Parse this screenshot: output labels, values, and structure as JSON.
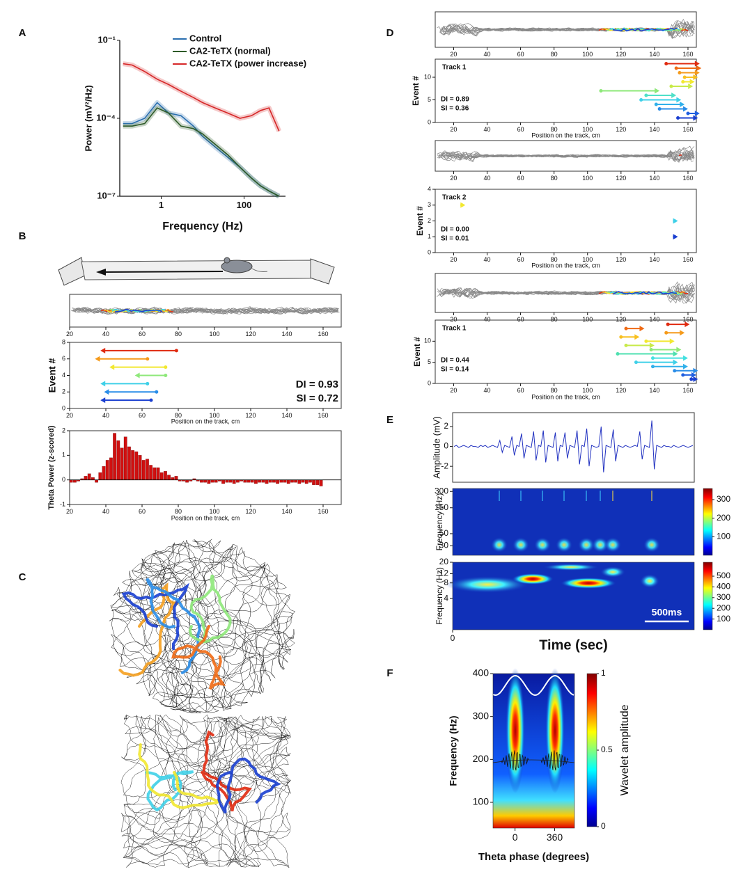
{
  "panel_labels": [
    "A",
    "B",
    "C",
    "D",
    "E",
    "F"
  ],
  "chart_data": [
    {
      "type": "line",
      "xlabel": "Frequency (Hz)",
      "ylabel": "Power (mV²/Hz)",
      "xscale": "log",
      "yscale": "log",
      "xlim": [
        0.1,
        1000
      ],
      "ylim": [
        1e-07,
        0.1
      ],
      "xticks": [
        1,
        100
      ],
      "yticks": [
        {
          "value": 0.1,
          "label": "10⁻¹"
        },
        {
          "value": 0.0001,
          "label": "10⁻⁴"
        },
        {
          "value": 1e-07,
          "label": "10⁻⁷"
        }
      ],
      "legend": "upper left",
      "x": [
        0.12,
        0.2,
        0.4,
        0.8,
        1.5,
        3,
        6,
        10,
        20,
        40,
        80,
        150,
        250,
        400,
        700
      ],
      "series": [
        {
          "name": "Control",
          "color": "#2a6fb0",
          "values": [
            6.3e-05,
            6.3e-05,
            0.0001,
            0.0004,
            0.00016,
            0.000126,
            5e-05,
            2e-05,
            7.9e-06,
            3.2e-06,
            1.3e-06,
            5e-07,
            2.5e-07,
            1.6e-07,
            1e-07
          ]
        },
        {
          "name": "CA2-TeTX (normal)",
          "color": "#2d5a27",
          "values": [
            5e-05,
            5e-05,
            6.3e-05,
            0.00025,
            0.00016,
            5e-05,
            4e-05,
            2.5e-05,
            1e-05,
            4e-06,
            1.3e-06,
            5e-07,
            2.5e-07,
            1.6e-07,
            1e-07
          ]
        },
        {
          "name": "CA2-TeTX (power increase)",
          "color": "#d62728",
          "values": [
            0.0126,
            0.0112,
            0.0063,
            0.0032,
            0.002,
            0.0011,
            0.00063,
            0.0004,
            0.00025,
            0.00016,
            0.0001,
            0.000126,
            0.0002,
            0.00025,
            3.2e-05
          ]
        }
      ]
    },
    {
      "type": "trace",
      "xlim": [
        20,
        170
      ],
      "xticks": [
        20,
        40,
        60,
        80,
        100,
        120,
        140,
        160
      ]
    },
    {
      "type": "range",
      "xlabel": "Position on the track, cm",
      "ylabel": "Event #",
      "xlim": [
        20,
        170
      ],
      "ylim": [
        0,
        8
      ],
      "xticks": [
        20,
        40,
        60,
        80,
        100,
        120,
        140,
        160
      ],
      "yticks": [
        0,
        2,
        4,
        6,
        8
      ],
      "annotations": [
        "DI = 0.93",
        "SI = 0.72"
      ],
      "events": {
        "y": [
          1,
          2,
          3,
          4,
          5,
          6,
          7
        ],
        "start": [
          65,
          68,
          63,
          73,
          73,
          63,
          79
        ],
        "end": [
          37,
          39,
          37,
          56,
          42,
          34,
          37
        ],
        "colors": [
          "#1a3fd0",
          "#2a8de8",
          "#3fd0e8",
          "#8ee87a",
          "#f2e830",
          "#f59a1a",
          "#e02a10"
        ]
      }
    },
    {
      "type": "bar",
      "xlabel": "Position on the track, cm",
      "ylabel": "Theta Power (z-scored)",
      "xlim": [
        20,
        170
      ],
      "ylim": [
        -1,
        2
      ],
      "xticks": [
        20,
        40,
        60,
        80,
        100,
        120,
        140,
        160
      ],
      "yticks": [
        -1,
        0,
        1,
        2
      ],
      "color": "#d01010",
      "x": [
        20,
        22,
        24,
        26,
        28,
        30,
        32,
        34,
        36,
        38,
        40,
        42,
        44,
        46,
        48,
        50,
        52,
        54,
        56,
        58,
        60,
        62,
        64,
        66,
        68,
        70,
        72,
        74,
        76,
        78,
        80,
        82,
        84,
        86,
        88,
        90,
        92,
        94,
        96,
        98,
        100,
        102,
        104,
        106,
        108,
        110,
        112,
        114,
        116,
        118,
        120,
        122,
        124,
        126,
        128,
        130,
        132,
        134,
        136,
        138,
        140,
        142,
        144,
        146,
        148,
        150,
        152,
        154,
        156,
        158
      ],
      "values": [
        -0.1,
        -0.1,
        -0.05,
        0.05,
        0.15,
        0.25,
        0.1,
        -0.1,
        0.3,
        0.55,
        0.8,
        0.9,
        1.9,
        1.6,
        1.3,
        1.75,
        1.35,
        1.2,
        1.15,
        1.0,
        0.8,
        0.85,
        0.6,
        0.5,
        0.5,
        0.3,
        0.35,
        0.2,
        0.1,
        0.15,
        -0.05,
        -0.05,
        -0.1,
        -0.05,
        0.05,
        -0.05,
        -0.1,
        -0.1,
        -0.15,
        -0.1,
        -0.1,
        -0.05,
        -0.15,
        -0.1,
        -0.1,
        -0.15,
        -0.1,
        -0.05,
        -0.1,
        -0.1,
        -0.1,
        -0.15,
        -0.1,
        -0.1,
        -0.15,
        -0.1,
        -0.1,
        -0.15,
        -0.1,
        -0.1,
        -0.15,
        -0.1,
        -0.1,
        -0.15,
        -0.1,
        -0.15,
        -0.1,
        -0.2,
        -0.2,
        -0.25
      ]
    },
    {
      "type": "trace",
      "xlim": [
        9,
        165
      ],
      "xticks": [
        20,
        40,
        60,
        80,
        100,
        120,
        140,
        160
      ]
    },
    {
      "type": "range",
      "title": "Track 1",
      "xlabel": "Position on the track, cm",
      "ylabel": "Event #",
      "xlim": [
        9,
        165
      ],
      "ylim": [
        0,
        14
      ],
      "xticks": [
        20,
        40,
        60,
        80,
        100,
        120,
        140,
        160
      ],
      "yticks": [
        0,
        5,
        10
      ],
      "annotations": [
        "DI = 0.89",
        "SI = 0.36"
      ],
      "events": {
        "y": [
          1,
          2,
          3,
          4,
          5,
          6,
          7,
          8,
          9,
          10,
          11,
          12,
          13
        ],
        "start": [
          154,
          160,
          143,
          141,
          132,
          135,
          108,
          150,
          157,
          158,
          155,
          153,
          147
        ],
        "end": [
          166,
          167,
          160,
          158,
          156,
          153,
          143,
          163,
          164,
          166,
          167,
          168,
          167
        ],
        "colors": [
          "#1a3fd0",
          "#1f5fe0",
          "#2a8de8",
          "#30b0ea",
          "#3fd0e8",
          "#4fe0c8",
          "#8ee87a",
          "#c8ea4a",
          "#f2e830",
          "#f8c020",
          "#f59a1a",
          "#ef6a14",
          "#e02a10"
        ]
      }
    },
    {
      "type": "trace",
      "xlim": [
        9,
        165
      ],
      "xticks": [
        20,
        40,
        60,
        80,
        100,
        120,
        140,
        160
      ]
    },
    {
      "type": "range",
      "title": "Track 2",
      "xlabel": "Position on the track, cm",
      "ylabel": "Event #",
      "xlim": [
        9,
        165
      ],
      "ylim": [
        0,
        4
      ],
      "xticks": [
        20,
        40,
        60,
        80,
        100,
        120,
        140,
        160
      ],
      "yticks": [
        0,
        1,
        2,
        3,
        4
      ],
      "annotations": [
        "DI = 0.00",
        "SI = 0.01"
      ],
      "events": {
        "y": [
          1,
          2,
          3
        ],
        "start": [
          152,
          152,
          25
        ],
        "end": [
          154,
          154,
          27
        ],
        "colors": [
          "#1a3fd0",
          "#3fd0e8",
          "#f2e830"
        ]
      }
    },
    {
      "type": "trace",
      "xlim": [
        9,
        165
      ],
      "xticks": [
        20,
        40,
        60,
        80,
        100,
        120,
        140,
        160
      ]
    },
    {
      "type": "range",
      "title": "Track 1",
      "xlabel": "Position on the track, cm",
      "ylabel": "Event #",
      "xlim": [
        9,
        165
      ],
      "ylim": [
        0,
        15
      ],
      "xticks": [
        20,
        40,
        60,
        80,
        100,
        120,
        140,
        160
      ],
      "yticks": [
        0,
        5,
        10
      ],
      "annotations": [
        "DI = 0.44",
        "SI = 0.14"
      ],
      "events": {
        "y": [
          1,
          2,
          3,
          4,
          5,
          6,
          7,
          8,
          9,
          10,
          11,
          12,
          13,
          14
        ],
        "start": [
          162,
          157,
          152,
          139,
          129,
          139,
          118,
          138,
          123,
          135,
          120,
          147,
          123,
          148
        ],
        "end": [
          166,
          165,
          166,
          160,
          154,
          160,
          154,
          156,
          140,
          152,
          131,
          158,
          134,
          161
        ],
        "colors": [
          "#1a3fd0",
          "#1f5fe0",
          "#2a8de8",
          "#30b0ea",
          "#3fd0e8",
          "#45e0e0",
          "#4fe0b0",
          "#8ee87a",
          "#c8ea4a",
          "#f2e830",
          "#f8c020",
          "#f59a1a",
          "#ef6a14",
          "#e02a10"
        ]
      }
    },
    {
      "type": "line",
      "ylabel": "Amplitude (mV)",
      "ylim": [
        -3.6,
        3.4
      ],
      "yticks": [
        -2,
        0,
        2
      ],
      "color": "#2030c0",
      "values": [
        0,
        0.1,
        -0.1,
        0,
        0.1,
        0,
        -0.1,
        0.1,
        0,
        0,
        -0.1,
        0.1,
        0,
        0.1,
        -0.1,
        0,
        0.1,
        0,
        -0.1,
        0.6,
        -0.6,
        0.1,
        0,
        -0.1,
        1.0,
        -0.9,
        0.1,
        0,
        1.3,
        -1.2,
        0.1,
        0,
        -0.1,
        1.5,
        -1.4,
        0.1,
        0,
        1.6,
        -1.6,
        0.1,
        0,
        -0.1,
        1.4,
        -1.5,
        0.1,
        0,
        1.4,
        -1.2,
        0.1,
        0,
        -0.1,
        1.6,
        -1.8,
        0.1,
        0,
        1.8,
        -2.0,
        0.1,
        0,
        -0.1,
        0,
        2.0,
        -2.6,
        0.1,
        0,
        -0.1,
        1.7,
        -1.5,
        0.1,
        0,
        -0.1,
        0.1,
        0,
        -0.1,
        0,
        0.1,
        0,
        1.5,
        -1.3,
        0.1,
        0,
        -0.1,
        2.6,
        -2.3,
        0.1,
        0,
        -0.1,
        0.1,
        0,
        0,
        -0.1,
        0.1,
        0,
        -0.1,
        0,
        0.1,
        0,
        -0.1,
        0,
        0.1
      ]
    },
    {
      "type": "heatmap",
      "ylabel": "Frequency (Hz)",
      "yscale": "log",
      "ylim": [
        20,
        340
      ],
      "yticks": [
        30,
        50,
        150,
        300
      ],
      "colorbar": {
        "lim": [
          0,
          360
        ],
        "ticks": [
          100,
          200,
          300
        ]
      }
    },
    {
      "type": "heatmap",
      "ylabel": "Frequency (Hz)",
      "xlabel": "Time (sec)",
      "yscale": "log",
      "xlim": [
        0,
        2.75
      ],
      "ylim": [
        1,
        20
      ],
      "xticks": [
        0
      ],
      "yticks": [
        4,
        8,
        12,
        20
      ],
      "scalebar": {
        "value": 0.5,
        "label": "500ms"
      },
      "colorbar": {
        "lim": [
          0,
          630
        ],
        "ticks": [
          100,
          200,
          300,
          400,
          500
        ]
      }
    },
    {
      "type": "heatmap",
      "xlabel": "Theta phase (degrees)",
      "ylabel": "Frequency (Hz)",
      "xlim": [
        -200,
        540
      ],
      "ylim": [
        40,
        400
      ],
      "xticks": [
        0,
        360
      ],
      "yticks": [
        100,
        200,
        300,
        400
      ],
      "colorbar": {
        "lim": [
          0,
          1
        ],
        "ticks": [
          0,
          0.5,
          1
        ],
        "label": "Wavelet amplitude"
      }
    }
  ]
}
